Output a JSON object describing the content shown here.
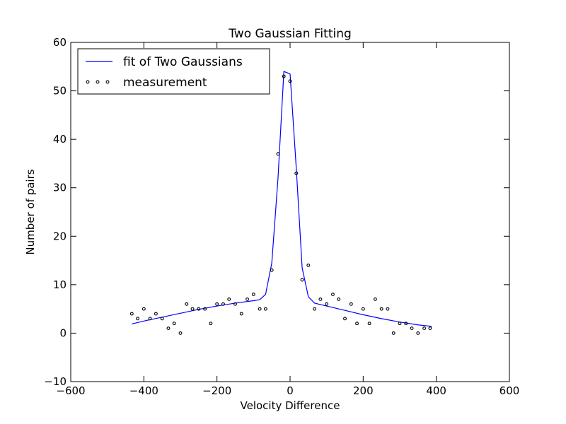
{
  "chart_data": {
    "type": "scatter",
    "title": "Two Gaussian Fitting",
    "xlabel": "Velocity Difference",
    "ylabel": "Number of pairs",
    "xlim": [
      -600,
      600
    ],
    "ylim": [
      -10,
      60
    ],
    "xticks": [
      -600,
      -400,
      -200,
      0,
      200,
      400,
      600
    ],
    "yticks": [
      -10,
      0,
      10,
      20,
      30,
      40,
      50,
      60
    ],
    "xtick_labels": [
      "−600",
      "−400",
      "−200",
      "0",
      "200",
      "400",
      "600"
    ],
    "ytick_labels": [
      "−10",
      "0",
      "10",
      "20",
      "30",
      "40",
      "50",
      "60"
    ],
    "grid": false,
    "legend_position": "top-left",
    "series": [
      {
        "name": "fit of Two Gaussians",
        "kind": "line",
        "color": "#0000ff",
        "x": [
          -433,
          -400,
          -350,
          -300,
          -250,
          -200,
          -150,
          -100,
          -83,
          -67,
          -50,
          -33,
          -17,
          0,
          17,
          33,
          50,
          67,
          100,
          150,
          200,
          250,
          300,
          350,
          388
        ],
        "y": [
          1.9,
          2.5,
          3.3,
          4.1,
          4.9,
          5.6,
          6.2,
          6.7,
          6.9,
          8.0,
          14.5,
          32.0,
          54.0,
          53.5,
          34.0,
          13.5,
          7.5,
          6.2,
          5.6,
          4.7,
          3.8,
          3.0,
          2.3,
          1.7,
          1.4
        ]
      },
      {
        "name": "measurement",
        "kind": "scatter",
        "color": "#000000",
        "x": [
          -433,
          -417,
          -400,
          -383,
          -367,
          -350,
          -333,
          -317,
          -300,
          -283,
          -267,
          -250,
          -233,
          -217,
          -200,
          -183,
          -167,
          -150,
          -133,
          -117,
          -100,
          -83,
          -67,
          -50,
          -33,
          -17,
          0,
          17,
          33,
          50,
          67,
          83,
          100,
          117,
          133,
          150,
          167,
          183,
          200,
          217,
          233,
          250,
          267,
          283,
          300,
          317,
          333,
          350,
          367,
          383
        ],
        "y": [
          4,
          3,
          5,
          3,
          4,
          3,
          1,
          2,
          0,
          6,
          5,
          5,
          5,
          2,
          6,
          6,
          7,
          6,
          4,
          7,
          8,
          5,
          5,
          13,
          37,
          53,
          52,
          33,
          11,
          14,
          5,
          7,
          6,
          8,
          7,
          3,
          6,
          2,
          5,
          2,
          7,
          5,
          5,
          0,
          2,
          2,
          1,
          0,
          1,
          1
        ]
      }
    ]
  }
}
